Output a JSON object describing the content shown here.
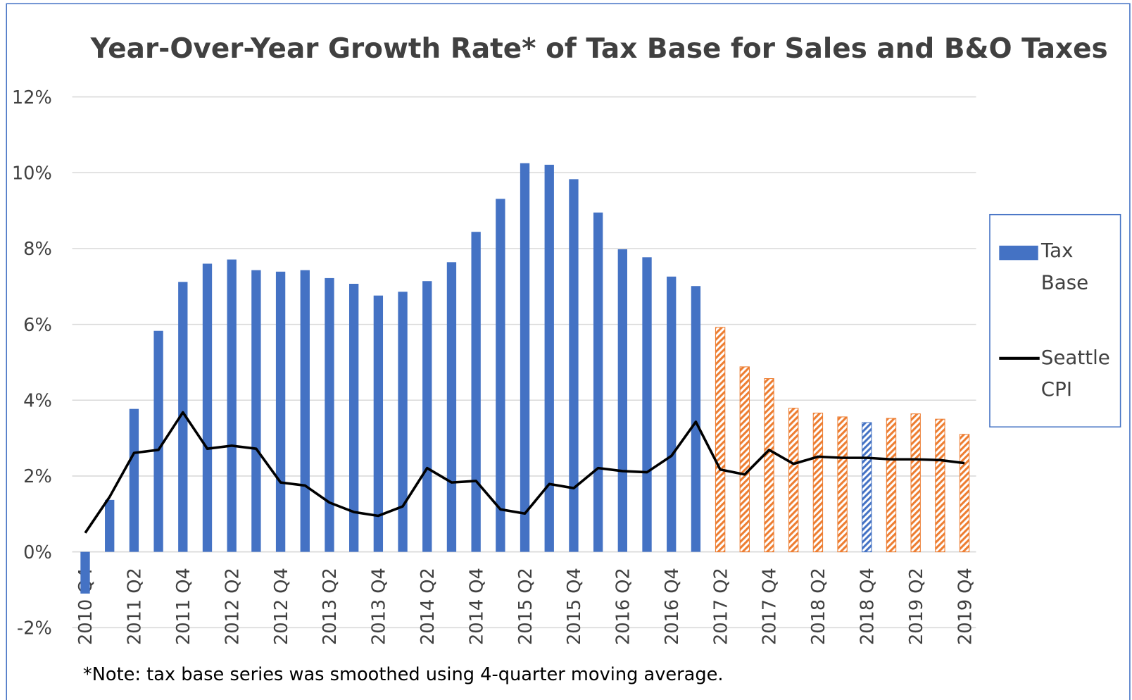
{
  "chart_data": {
    "type": "bar_line",
    "title": "Year-Over-Year Growth Rate* of Tax Base for Sales and B&O Taxes",
    "note": "*Note: tax base series was smoothed using 4-quarter moving average.",
    "categories": [
      "2010 Q4",
      null,
      "2011 Q2",
      null,
      "2011 Q4",
      null,
      "2012 Q2",
      null,
      "2012 Q4",
      null,
      "2013 Q2",
      null,
      "2013 Q4",
      null,
      "2014 Q2",
      null,
      "2014 Q4",
      null,
      "2015 Q2",
      null,
      "2015 Q4",
      null,
      "2016 Q2",
      null,
      "2016 Q4",
      null,
      "2017 Q2",
      null,
      "2017 Q4",
      null,
      "2018 Q2",
      null,
      "2018 Q4",
      null,
      "2019 Q2",
      null,
      "2019 Q4"
    ],
    "series": [
      {
        "name": "Tax Base",
        "kind": "bar",
        "color": "#4472c4",
        "colors": [
          "#4472c4",
          "#4472c4",
          "#4472c4",
          "#4472c4",
          "#4472c4",
          "#4472c4",
          "#4472c4",
          "#4472c4",
          "#4472c4",
          "#4472c4",
          "#4472c4",
          "#4472c4",
          "#4472c4",
          "#4472c4",
          "#4472c4",
          "#4472c4",
          "#4472c4",
          "#4472c4",
          "#4472c4",
          "#4472c4",
          "#4472c4",
          "#4472c4",
          "#4472c4",
          "#4472c4",
          "#4472c4",
          "#4472c4",
          "#ed7d31",
          "#ed7d31",
          "#ed7d31",
          "#ed7d31",
          "#ed7d31",
          "#ed7d31",
          "#4472c4",
          "#ed7d31",
          "#ed7d31",
          "#ed7d31",
          "#ed7d31"
        ],
        "hatched": [
          false,
          false,
          false,
          false,
          false,
          false,
          false,
          false,
          false,
          false,
          false,
          false,
          false,
          false,
          false,
          false,
          false,
          false,
          false,
          false,
          false,
          false,
          false,
          false,
          false,
          false,
          true,
          true,
          true,
          true,
          true,
          true,
          true,
          true,
          true,
          true,
          true
        ],
        "values": [
          -1.1,
          1.37,
          3.77,
          5.83,
          7.12,
          7.6,
          7.71,
          7.43,
          7.39,
          7.43,
          7.22,
          7.07,
          6.76,
          6.86,
          7.14,
          7.64,
          8.44,
          9.31,
          10.25,
          10.21,
          9.83,
          8.95,
          7.98,
          7.77,
          7.26,
          7.01,
          5.92,
          4.88,
          4.57,
          3.79,
          3.66,
          3.56,
          3.41,
          3.52,
          3.64,
          3.5,
          3.1
        ]
      },
      {
        "name": "Seattle CPI",
        "kind": "line",
        "color": "#000000",
        "values": [
          0.5,
          1.45,
          2.61,
          2.69,
          3.68,
          2.72,
          2.8,
          2.72,
          1.83,
          1.75,
          1.3,
          1.05,
          0.95,
          1.2,
          2.21,
          1.83,
          1.87,
          1.12,
          1.01,
          1.79,
          1.68,
          2.21,
          2.13,
          2.1,
          2.53,
          3.43,
          2.17,
          2.04,
          2.69,
          2.32,
          2.51,
          2.48,
          2.48,
          2.44,
          2.44,
          2.42,
          2.34
        ]
      }
    ],
    "ylim": [
      -2,
      12
    ],
    "yticks": [
      {
        "value": -2,
        "label": "-2%"
      },
      {
        "value": 0,
        "label": "0%"
      },
      {
        "value": 2,
        "label": "2%"
      },
      {
        "value": 4,
        "label": "4%"
      },
      {
        "value": 6,
        "label": "6%"
      },
      {
        "value": 8,
        "label": "8%"
      },
      {
        "value": 10,
        "label": "10%"
      },
      {
        "value": 12,
        "label": "12%"
      }
    ],
    "grid": true,
    "legend": "right"
  }
}
